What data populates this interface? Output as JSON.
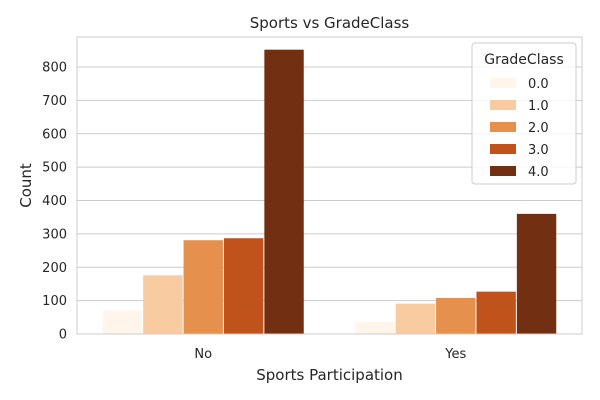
{
  "chart_data": {
    "type": "bar",
    "title": "Sports vs GradeClass",
    "xlabel": "Sports Participation",
    "ylabel": "Count",
    "categories": [
      "No",
      "Yes"
    ],
    "ylim": [
      0,
      890
    ],
    "yticks": [
      0,
      100,
      200,
      300,
      400,
      500,
      600,
      700,
      800
    ],
    "grid": true,
    "legend": {
      "title": "GradeClass",
      "position": "top-right"
    },
    "series": [
      {
        "name": "0.0",
        "color": "#fff5eb",
        "values": [
          70,
          36
        ]
      },
      {
        "name": "1.0",
        "color": "#f8cba0",
        "values": [
          176,
          91
        ]
      },
      {
        "name": "2.0",
        "color": "#e6904d",
        "values": [
          281,
          108
        ]
      },
      {
        "name": "3.0",
        "color": "#c0521c",
        "values": [
          287,
          127
        ]
      },
      {
        "name": "4.0",
        "color": "#722f12",
        "values": [
          852,
          360
        ]
      }
    ]
  }
}
